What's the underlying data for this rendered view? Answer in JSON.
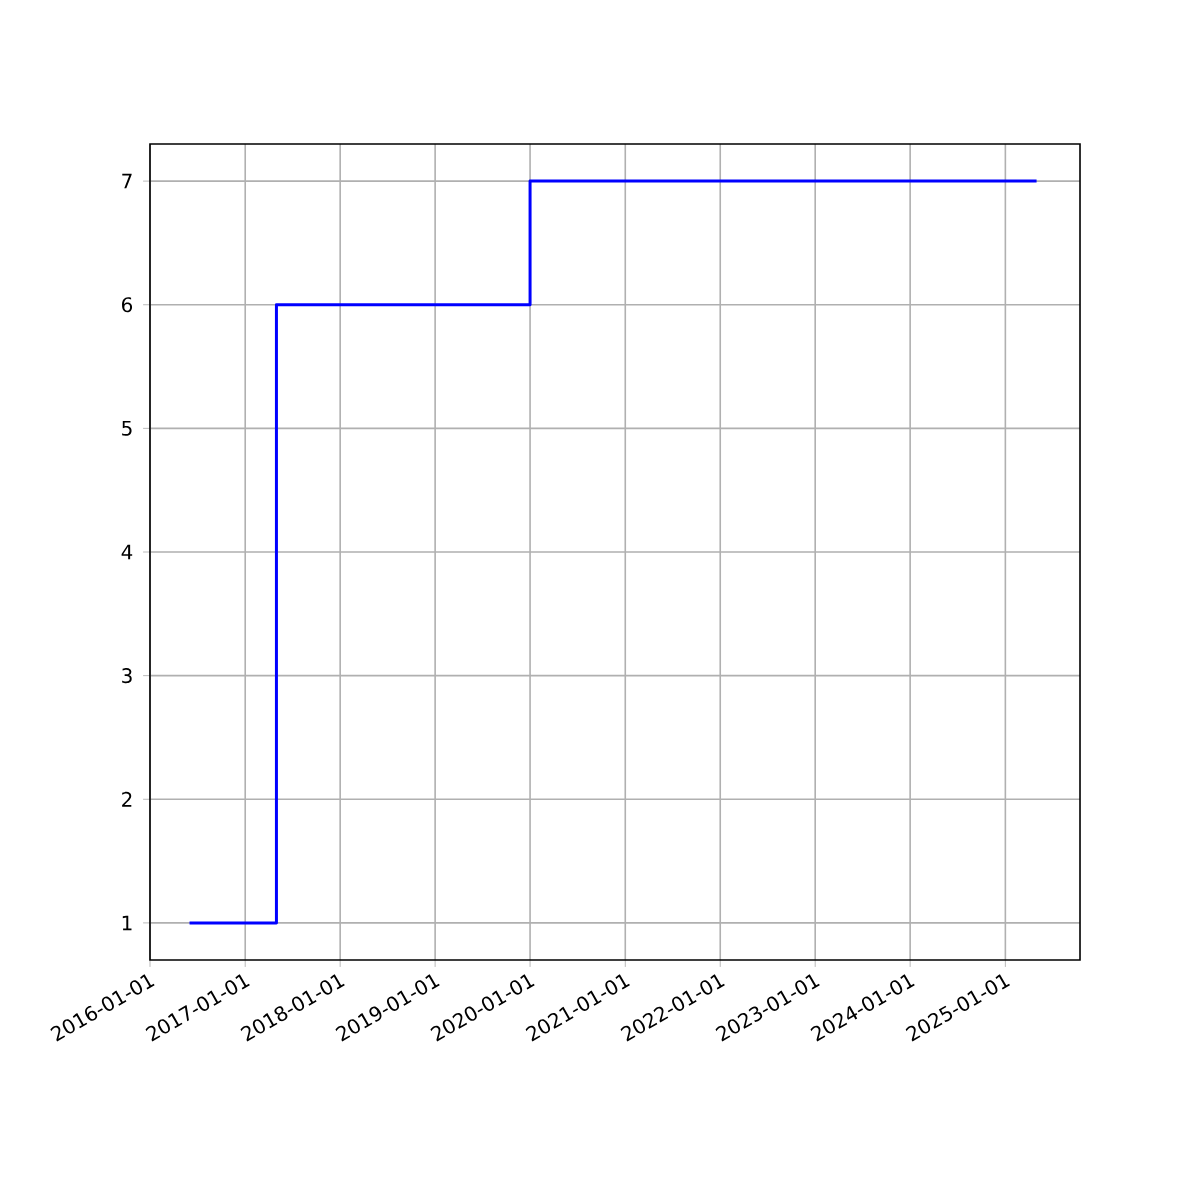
{
  "chart_data": {
    "type": "step",
    "x": [
      "2016-06-01",
      "2017-05-01",
      "2020-01-01",
      "2025-05-01"
    ],
    "values": [
      1,
      6,
      7,
      7
    ],
    "color": "#0000ff",
    "xlim": [
      "2016-01-01",
      "2025-10-15"
    ],
    "xticks": [
      "2016-01-01",
      "2017-01-01",
      "2018-01-01",
      "2019-01-01",
      "2020-01-01",
      "2021-01-01",
      "2022-01-01",
      "2023-01-01",
      "2024-01-01",
      "2025-01-01"
    ],
    "ylim": [
      0.7,
      7.3
    ],
    "yticks": [
      1,
      2,
      3,
      4,
      5,
      6,
      7
    ],
    "grid": true
  }
}
